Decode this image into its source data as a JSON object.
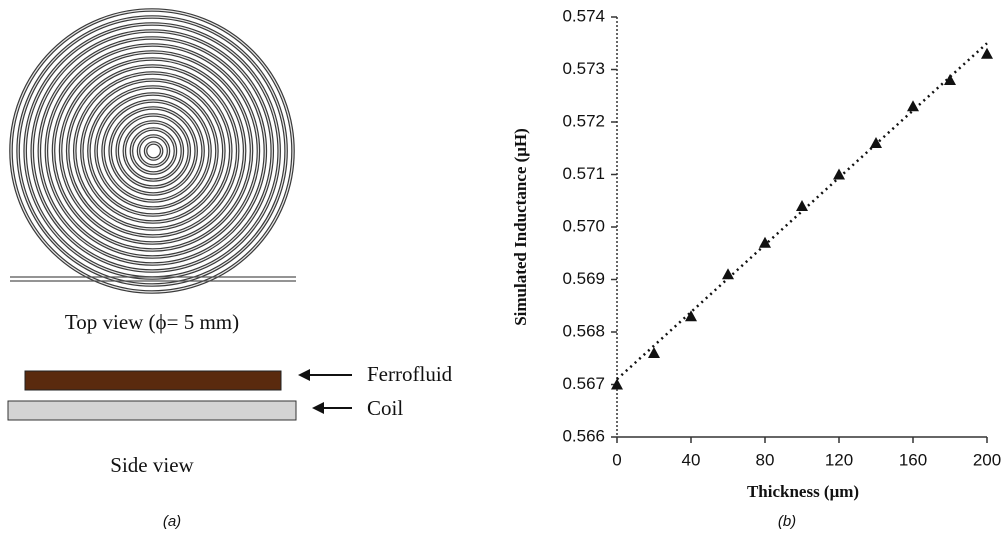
{
  "panel_a": {
    "top_view": "Top view (ϕ= 5 mm)",
    "ferrofluid": "Ferrofluid",
    "coil": "Coil",
    "side_view": "Side view",
    "caption": "(a)"
  },
  "chart_data": {
    "type": "scatter",
    "caption": "(b)",
    "x_label": "Thickness (μm)",
    "y_label": "Simulated Inductance (μH)",
    "x": [
      0,
      20,
      40,
      60,
      80,
      100,
      120,
      140,
      160,
      180,
      200
    ],
    "values": [
      0.567,
      0.5676,
      0.5683,
      0.5691,
      0.5697,
      0.5704,
      0.571,
      0.5716,
      0.5723,
      0.5728,
      0.5733
    ],
    "color": "#111111",
    "marker": "triangle",
    "trendline": {
      "x": [
        0,
        200
      ],
      "values": [
        0.5671,
        0.5735
      ]
    },
    "xlim": [
      0,
      200
    ],
    "xticks": [
      0,
      40,
      80,
      120,
      160,
      200
    ],
    "ylim": [
      0.566,
      0.574
    ],
    "yticks": [
      {
        "value": 0.566,
        "label": "0.566"
      },
      {
        "value": 0.567,
        "label": "0.567"
      },
      {
        "value": 0.568,
        "label": "0.568"
      },
      {
        "value": 0.569,
        "label": "0.569"
      },
      {
        "value": 0.57,
        "label": "0.570"
      },
      {
        "value": 0.571,
        "label": "0.571"
      },
      {
        "value": 0.572,
        "label": "0.572"
      },
      {
        "value": 0.573,
        "label": "0.573"
      },
      {
        "value": 0.574,
        "label": "0.574"
      }
    ],
    "grid": false
  }
}
